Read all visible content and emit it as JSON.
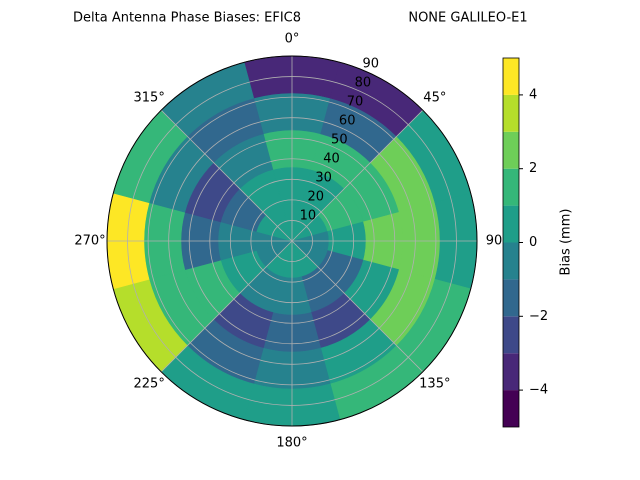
{
  "chart_data": {
    "type": "polar_contour",
    "title": "Delta Antenna Phase Biases: EFIC8",
    "subtitle": "NONE GALILEO-E1",
    "colorbar_label": "Bias (mm)",
    "rlim": [
      0,
      90
    ],
    "rticks": [
      10,
      20,
      30,
      40,
      50,
      60,
      70,
      80,
      90
    ],
    "thetaticks": [
      {
        "value": 0,
        "label": "0°"
      },
      {
        "value": 45,
        "label": "45°"
      },
      {
        "value": 90,
        "label": "90"
      },
      {
        "value": 135,
        "label": "135°"
      },
      {
        "value": 180,
        "label": "180°"
      },
      {
        "value": 225,
        "label": "225°"
      },
      {
        "value": 270,
        "label": "270°"
      },
      {
        "value": 315,
        "label": "315°"
      }
    ],
    "grid": true,
    "theta_bins": [
      -15,
      15,
      45,
      75,
      105,
      135,
      165,
      195,
      225,
      255,
      285,
      315,
      345
    ],
    "r_bins": [
      0,
      18,
      36,
      54,
      72,
      90
    ],
    "z": [
      [
        0.5,
        0.5,
        0.5,
        -0.5,
        -0.5,
        0.5,
        0.5,
        0.5,
        -0.5,
        -0.5,
        0.5,
        0.5
      ],
      [
        0.5,
        0.5,
        1.5,
        0.5,
        -1.5,
        -1.5,
        -0.5,
        -0.5,
        0.5,
        -0.5,
        -1.5,
        0.5
      ],
      [
        1.5,
        1.5,
        1.5,
        2.5,
        0.5,
        -2.5,
        -1.5,
        -2.5,
        1.5,
        -1.5,
        -2.5,
        -0.5
      ],
      [
        -0.5,
        -1.5,
        2.5,
        2.5,
        2.5,
        0.5,
        -0.5,
        -1.5,
        1.5,
        1.5,
        -0.5,
        -1.5
      ],
      [
        -3.5,
        -3,
        0.5,
        0.5,
        1.5,
        1.5,
        0.5,
        0.5,
        3.5,
        4.5,
        1.5,
        -0.5
      ]
    ],
    "levels": [
      -5,
      -4,
      -3,
      -2,
      -1,
      0,
      1,
      2,
      3,
      4,
      5
    ],
    "colors": [
      "#440154",
      "#482878",
      "#3e4989",
      "#31688e",
      "#26828e",
      "#1f9e89",
      "#35b779",
      "#6ece58",
      "#b5de2b",
      "#fde725"
    ],
    "cticks": [
      {
        "value": -4,
        "label": "−4"
      },
      {
        "value": -2,
        "label": "−2"
      },
      0,
      2,
      4
    ]
  }
}
